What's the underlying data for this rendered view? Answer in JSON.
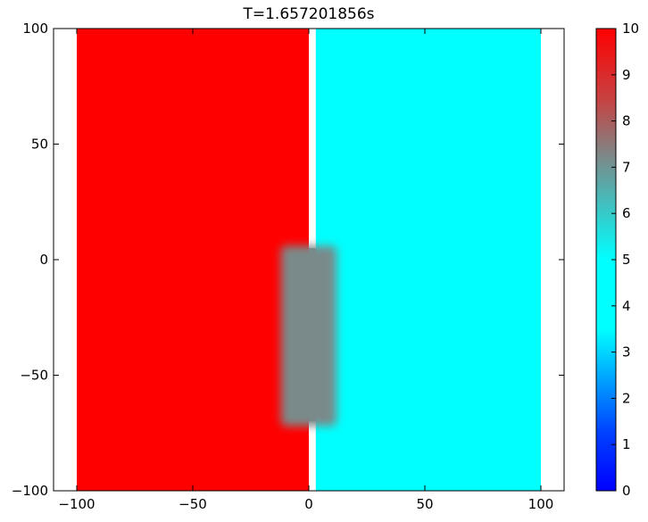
{
  "chart_data": {
    "type": "heatmap",
    "title": "T=1.657201856s",
    "xlabel": "",
    "ylabel": "",
    "xlim": [
      -110,
      110
    ],
    "ylim": [
      -100,
      100
    ],
    "x_ticks": [
      -100,
      -50,
      0,
      50,
      100
    ],
    "y_ticks": [
      -100,
      -50,
      0,
      50,
      100
    ],
    "x_tick_labels": [
      "−100",
      "−50",
      "0",
      "50",
      "100"
    ],
    "y_tick_labels": [
      "−100",
      "−50",
      "0",
      "50",
      "100"
    ],
    "colormap": "jet",
    "clim": [
      0,
      10
    ],
    "colorbar_ticks": [
      0,
      1,
      2,
      3,
      4,
      5,
      6,
      7,
      8,
      9,
      10
    ],
    "colorbar_tick_labels": [
      "0",
      "1",
      "2",
      "3",
      "4",
      "5",
      "6",
      "7",
      "8",
      "9",
      "10"
    ],
    "colors": {
      "high": "#ff0000",
      "low": "#00ffff",
      "mixed": "#7a8a8a",
      "empty": "#ffffff"
    },
    "regions": [
      {
        "name": "left-state",
        "x": [
          -100,
          0
        ],
        "y": [
          -100,
          100
        ],
        "value": 10
      },
      {
        "name": "right-state",
        "x": [
          3,
          100
        ],
        "y": [
          -100,
          100
        ],
        "value": 5
      },
      {
        "name": "gap-opening",
        "x": [
          0,
          3
        ],
        "y": [
          -70,
          5
        ],
        "value": 7.2
      },
      {
        "name": "mixing-zone",
        "x": [
          -12,
          12
        ],
        "y": [
          -72,
          6
        ],
        "value": 7.2
      }
    ]
  }
}
